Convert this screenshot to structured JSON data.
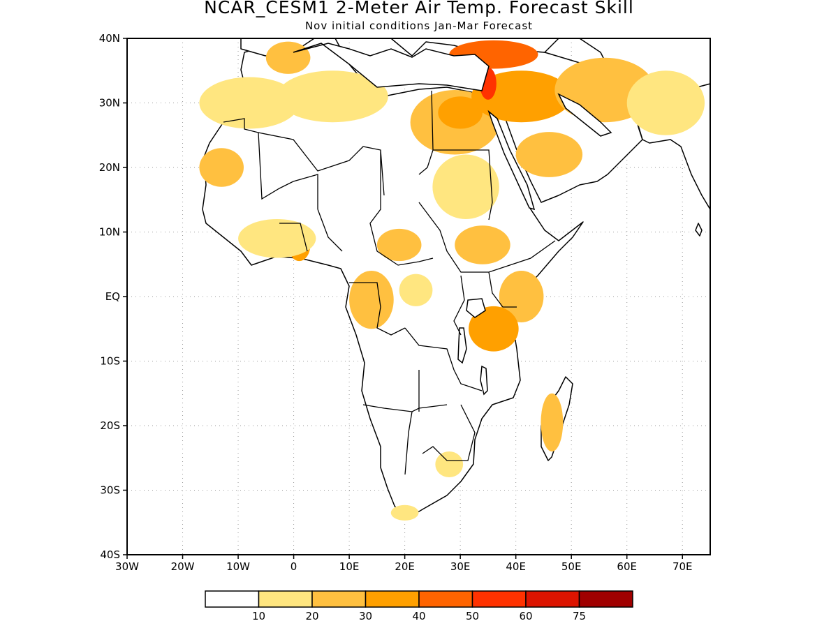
{
  "title": "NCAR_CESM1 2-Meter Air Temp. Forecast Skill",
  "subtitle": "Nov initial conditions  Jan-Mar Forecast",
  "map": {
    "lon_range": [
      -30,
      75
    ],
    "lat_range": [
      -40,
      40
    ],
    "x_ticks": [
      {
        "value": -30,
        "label": "30W"
      },
      {
        "value": -20,
        "label": "20W"
      },
      {
        "value": -10,
        "label": "10W"
      },
      {
        "value": 0,
        "label": "0"
      },
      {
        "value": 10,
        "label": "10E"
      },
      {
        "value": 20,
        "label": "20E"
      },
      {
        "value": 30,
        "label": "30E"
      },
      {
        "value": 40,
        "label": "40E"
      },
      {
        "value": 50,
        "label": "50E"
      },
      {
        "value": 60,
        "label": "60E"
      },
      {
        "value": 70,
        "label": "70E"
      }
    ],
    "y_ticks": [
      {
        "value": 40,
        "label": "40N"
      },
      {
        "value": 30,
        "label": "30N"
      },
      {
        "value": 20,
        "label": "20N"
      },
      {
        "value": 10,
        "label": "10N"
      },
      {
        "value": 0,
        "label": "EQ"
      },
      {
        "value": -10,
        "label": "10S"
      },
      {
        "value": -20,
        "label": "20S"
      },
      {
        "value": -30,
        "label": "30S"
      },
      {
        "value": -40,
        "label": "40S"
      }
    ],
    "grid": "dotted"
  },
  "legend": {
    "colors": [
      "#ffffff",
      "#ffe680",
      "#ffc040",
      "#ffa000",
      "#ff6400",
      "#ff3200",
      "#dc1400",
      "#a00000"
    ],
    "labels": [
      "10",
      "20",
      "30",
      "40",
      "50",
      "60",
      "75"
    ]
  },
  "skill_regions": [
    {
      "lon": -13,
      "lat": 20,
      "rx": 4,
      "ry": 3,
      "level": 2
    },
    {
      "lon": -8,
      "lat": 30,
      "rx": 9,
      "ry": 4,
      "level": 1
    },
    {
      "lon": -1,
      "lat": 37,
      "rx": 4,
      "ry": 2.5,
      "level": 2
    },
    {
      "lon": 7,
      "lat": 31,
      "rx": 10,
      "ry": 4,
      "level": 1
    },
    {
      "lon": 29,
      "lat": 27,
      "rx": 8,
      "ry": 5,
      "level": 2
    },
    {
      "lon": 30,
      "lat": 28.5,
      "rx": 4,
      "ry": 2.5,
      "level": 3
    },
    {
      "lon": 41,
      "lat": 31,
      "rx": 9,
      "ry": 4,
      "level": 3
    },
    {
      "lon": 36,
      "lat": 37.5,
      "rx": 8,
      "ry": 2.2,
      "level": 4
    },
    {
      "lon": 35,
      "lat": 33,
      "rx": 1.5,
      "ry": 2.5,
      "level": 5
    },
    {
      "lon": 56,
      "lat": 32,
      "rx": 9,
      "ry": 5,
      "level": 2
    },
    {
      "lon": 67,
      "lat": 30,
      "rx": 7,
      "ry": 5,
      "level": 1
    },
    {
      "lon": 46,
      "lat": 22,
      "rx": 6,
      "ry": 3.5,
      "level": 2
    },
    {
      "lon": 31,
      "lat": 17,
      "rx": 6,
      "ry": 5,
      "level": 1
    },
    {
      "lon": 34,
      "lat": 8,
      "rx": 5,
      "ry": 3,
      "level": 2
    },
    {
      "lon": 1,
      "lat": 8,
      "rx": 2,
      "ry": 2.5,
      "level": 3
    },
    {
      "lon": -3,
      "lat": 9,
      "rx": 7,
      "ry": 3,
      "level": 1
    },
    {
      "lon": 19,
      "lat": 8,
      "rx": 4,
      "ry": 2.5,
      "level": 2
    },
    {
      "lon": 14,
      "lat": -0.5,
      "rx": 4,
      "ry": 4.5,
      "level": 2
    },
    {
      "lon": 22,
      "lat": 1,
      "rx": 3,
      "ry": 2.5,
      "level": 1
    },
    {
      "lon": 41,
      "lat": 0,
      "rx": 4,
      "ry": 4,
      "level": 2
    },
    {
      "lon": 36,
      "lat": -5,
      "rx": 4.5,
      "ry": 3.5,
      "level": 3
    },
    {
      "lon": 46.5,
      "lat": -19.5,
      "rx": 2,
      "ry": 4.5,
      "level": 2
    },
    {
      "lon": 28,
      "lat": -26,
      "rx": 2.5,
      "ry": 2,
      "level": 1
    },
    {
      "lon": 20,
      "lat": -33.5,
      "rx": 2.5,
      "ry": 1.2,
      "level": 1
    }
  ]
}
